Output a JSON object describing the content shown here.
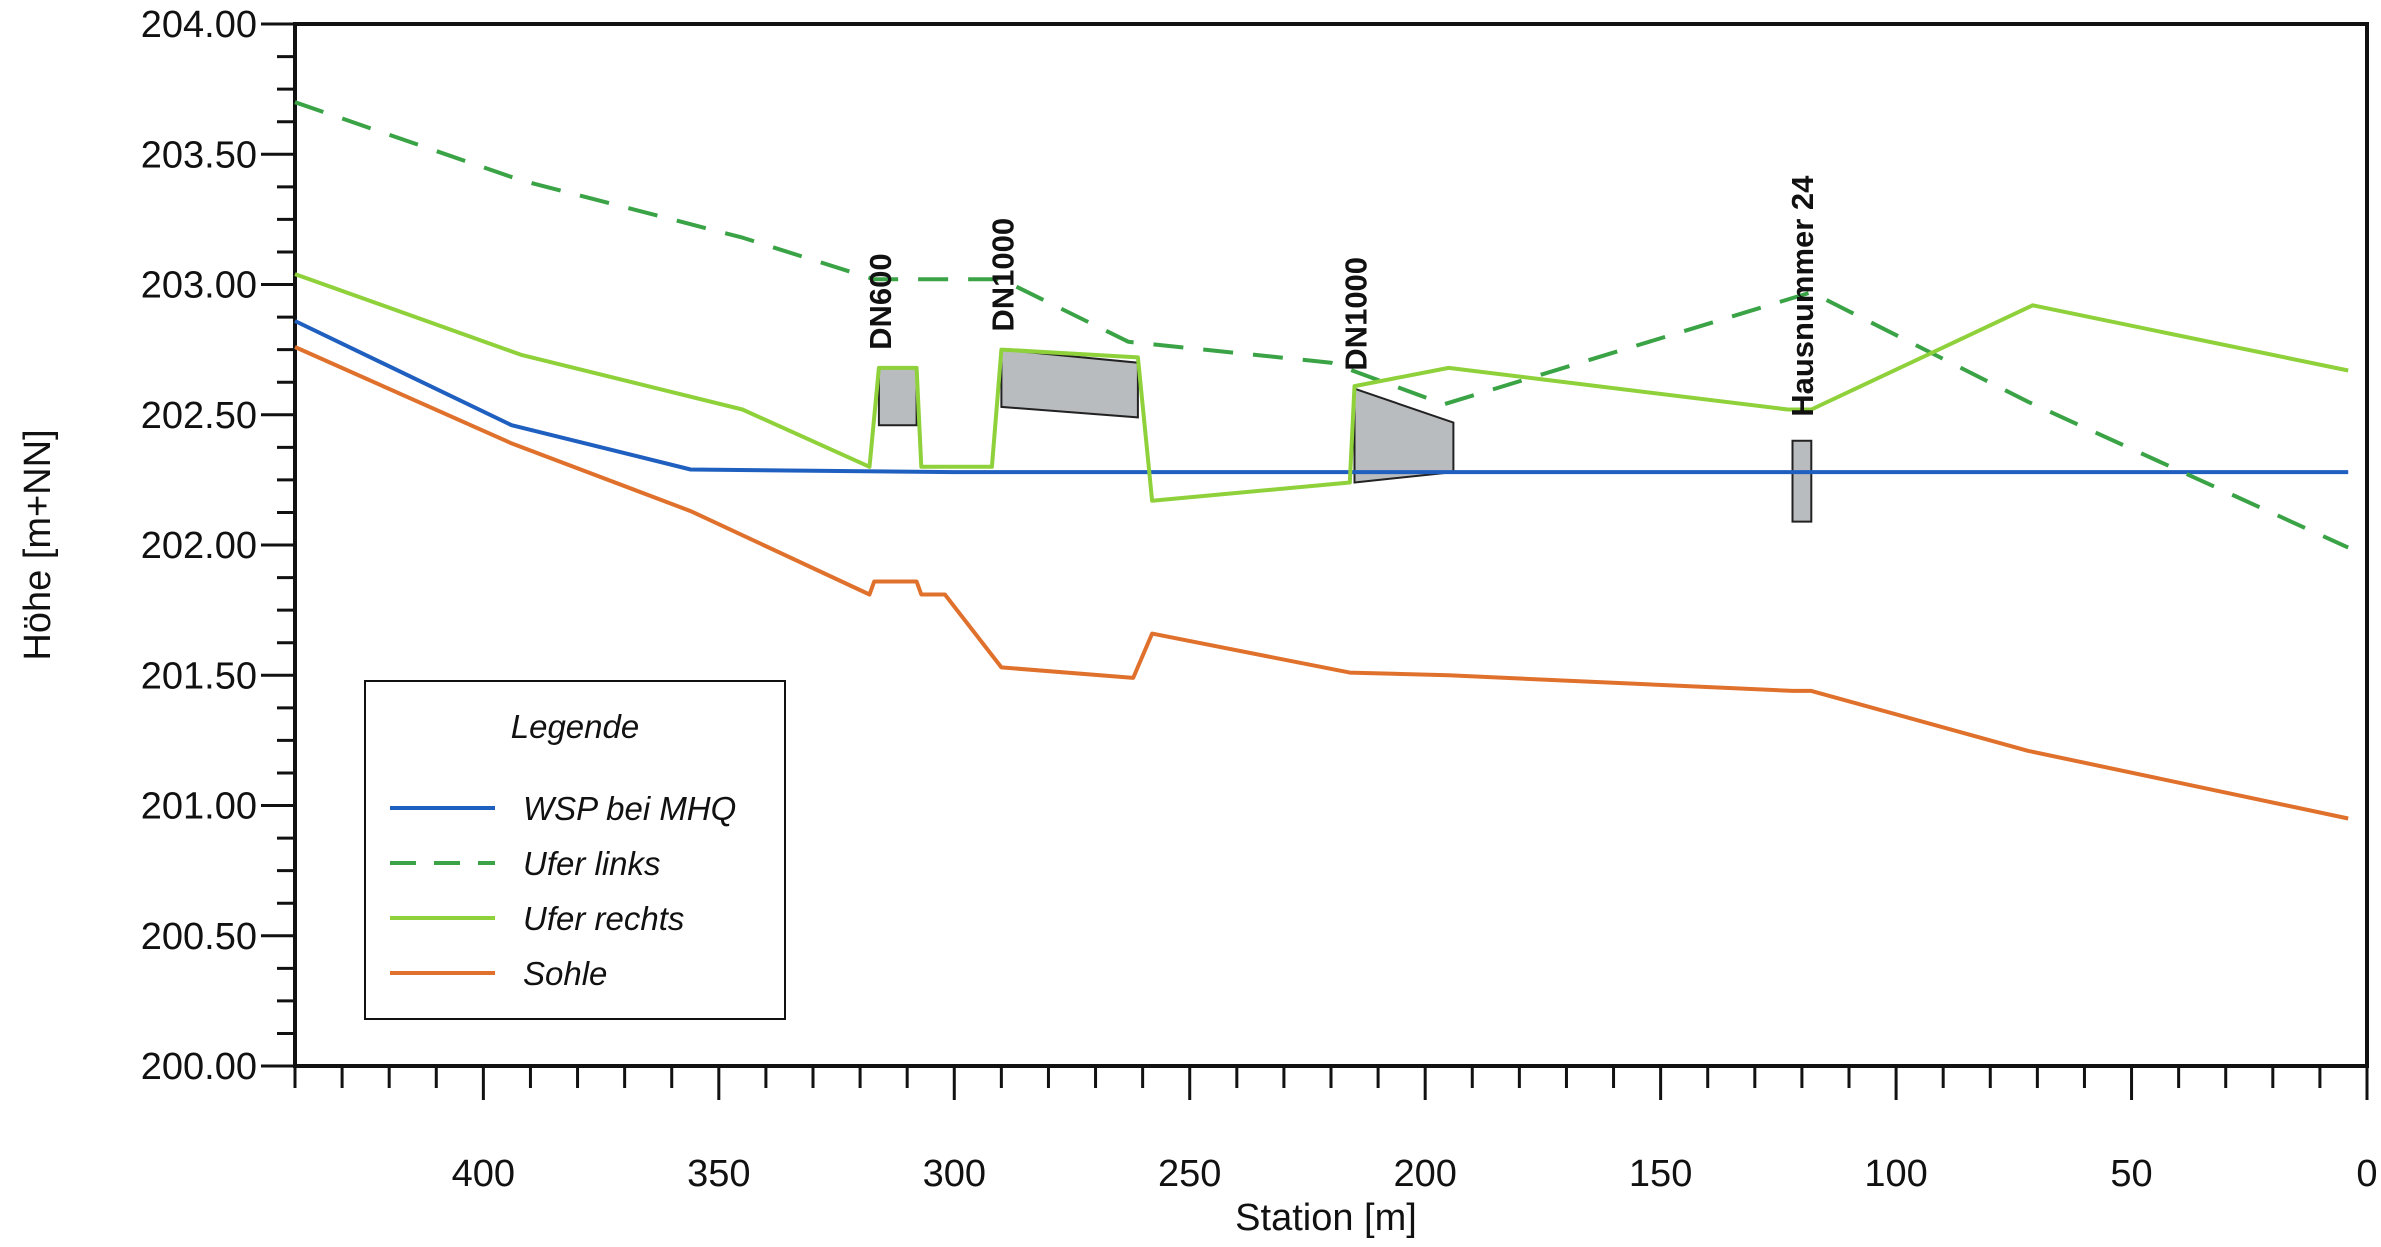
{
  "chart_data": {
    "type": "line",
    "title": "",
    "xlabel": "Station [m]",
    "ylabel": "Höhe [m+NN]",
    "xlim": [
      440,
      0
    ],
    "ylim": [
      200.0,
      204.0
    ],
    "x_reversed": true,
    "x_ticks": [
      400,
      350,
      300,
      250,
      200,
      150,
      100,
      50,
      0
    ],
    "x_tick_labels": [
      "400",
      "350",
      "300",
      "250",
      "200",
      "150",
      "100",
      "50",
      "0"
    ],
    "y_ticks": [
      200.0,
      200.5,
      201.0,
      201.5,
      202.0,
      202.5,
      203.0,
      203.5,
      204.0
    ],
    "y_tick_labels": [
      "200.00",
      "200.50",
      "201.00",
      "201.50",
      "202.00",
      "202.50",
      "203.00",
      "203.50",
      "204.00"
    ],
    "grid": false,
    "legend": {
      "title": "Legende",
      "position": "bottom-left",
      "entries": [
        "WSP bei MHQ",
        "Ufer links",
        "Ufer rechts",
        "Sohle"
      ]
    },
    "series": [
      {
        "name": "WSP bei MHQ",
        "color": "#1f5fbf",
        "dash": "solid",
        "points": [
          [
            440,
            202.86
          ],
          [
            394,
            202.46
          ],
          [
            356,
            202.29
          ],
          [
            300,
            202.28
          ],
          [
            250,
            202.28
          ],
          [
            200,
            202.28
          ],
          [
            150,
            202.28
          ],
          [
            100,
            202.28
          ],
          [
            50,
            202.28
          ],
          [
            4,
            202.28
          ]
        ]
      },
      {
        "name": "Ufer links",
        "color": "#3aa346",
        "dash": "dashed",
        "points": [
          [
            440,
            203.7
          ],
          [
            392,
            203.4
          ],
          [
            345,
            203.18
          ],
          [
            317,
            203.02
          ],
          [
            290,
            203.02
          ],
          [
            263,
            202.78
          ],
          [
            220,
            202.7
          ],
          [
            196,
            202.54
          ],
          [
            118,
            202.97
          ],
          [
            72,
            202.55
          ],
          [
            4,
            201.99
          ]
        ]
      },
      {
        "name": "Ufer rechts",
        "color": "#8fd13a",
        "dash": "solid",
        "points": [
          [
            440,
            203.04
          ],
          [
            392,
            202.73
          ],
          [
            345,
            202.52
          ],
          [
            318,
            202.3
          ],
          [
            316,
            202.68
          ],
          [
            308,
            202.68
          ],
          [
            307,
            202.3
          ],
          [
            292,
            202.3
          ],
          [
            290,
            202.75
          ],
          [
            261,
            202.72
          ],
          [
            258,
            202.17
          ],
          [
            216,
            202.24
          ],
          [
            215,
            202.61
          ],
          [
            195,
            202.68
          ],
          [
            123,
            202.52
          ],
          [
            118,
            202.52
          ],
          [
            71,
            202.92
          ],
          [
            4,
            202.67
          ]
        ]
      },
      {
        "name": "Sohle",
        "color": "#e0712c",
        "dash": "solid",
        "points": [
          [
            440,
            202.76
          ],
          [
            394,
            202.39
          ],
          [
            356,
            202.13
          ],
          [
            318,
            201.81
          ],
          [
            317,
            201.86
          ],
          [
            308,
            201.86
          ],
          [
            307,
            201.81
          ],
          [
            302,
            201.81
          ],
          [
            290,
            201.53
          ],
          [
            262,
            201.49
          ],
          [
            258,
            201.66
          ],
          [
            216,
            201.51
          ],
          [
            195,
            201.5
          ],
          [
            122,
            201.44
          ],
          [
            118,
            201.44
          ],
          [
            72,
            201.21
          ],
          [
            4,
            200.95
          ]
        ]
      }
    ],
    "structures": [
      {
        "label": "DN600",
        "polygon": [
          [
            316,
            202.68
          ],
          [
            308,
            202.68
          ],
          [
            308,
            202.46
          ],
          [
            316,
            202.46
          ]
        ]
      },
      {
        "label": "DN1000",
        "polygon": [
          [
            290,
            202.75
          ],
          [
            261,
            202.7
          ],
          [
            261,
            202.49
          ],
          [
            290,
            202.53
          ]
        ]
      },
      {
        "label": "DN1000",
        "polygon": [
          [
            215,
            202.6
          ],
          [
            194,
            202.47
          ],
          [
            194,
            202.28
          ],
          [
            215,
            202.24
          ]
        ]
      },
      {
        "label": "Hausnummer 24",
        "polygon": [
          [
            122,
            202.4
          ],
          [
            118,
            202.4
          ],
          [
            118,
            202.09
          ],
          [
            122,
            202.09
          ]
        ]
      }
    ]
  }
}
